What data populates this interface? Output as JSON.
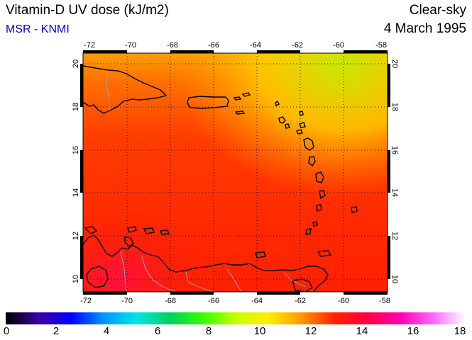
{
  "header": {
    "title": "Vitamin-D UV dose (kJ/m2)",
    "subtitle": "MSR - KNMI",
    "condition": "Clear-sky",
    "date": "4 March 1995"
  },
  "map": {
    "lon_range": [
      -72,
      -58
    ],
    "lat_range": [
      9.5,
      20.5
    ],
    "lon_ticks": [
      "-72",
      "-70",
      "-68",
      "-66",
      "-64",
      "-62",
      "-60",
      "-58"
    ],
    "lat_ticks": [
      "20",
      "18",
      "16",
      "14",
      "12",
      "10"
    ],
    "grid": "dotted"
  },
  "colorbar": {
    "ticks": [
      "0",
      "2",
      "4",
      "6",
      "8",
      "10",
      "12",
      "14",
      "16",
      "18"
    ],
    "colors": [
      "#000000",
      "#3b00a0",
      "#0000ff",
      "#0099ff",
      "#00e5e5",
      "#00d060",
      "#33ff00",
      "#c8ff00",
      "#ffee00",
      "#ff9900",
      "#ff2200",
      "#ff0040",
      "#ff00b0",
      "#ff66ff",
      "#ffffff"
    ]
  }
}
